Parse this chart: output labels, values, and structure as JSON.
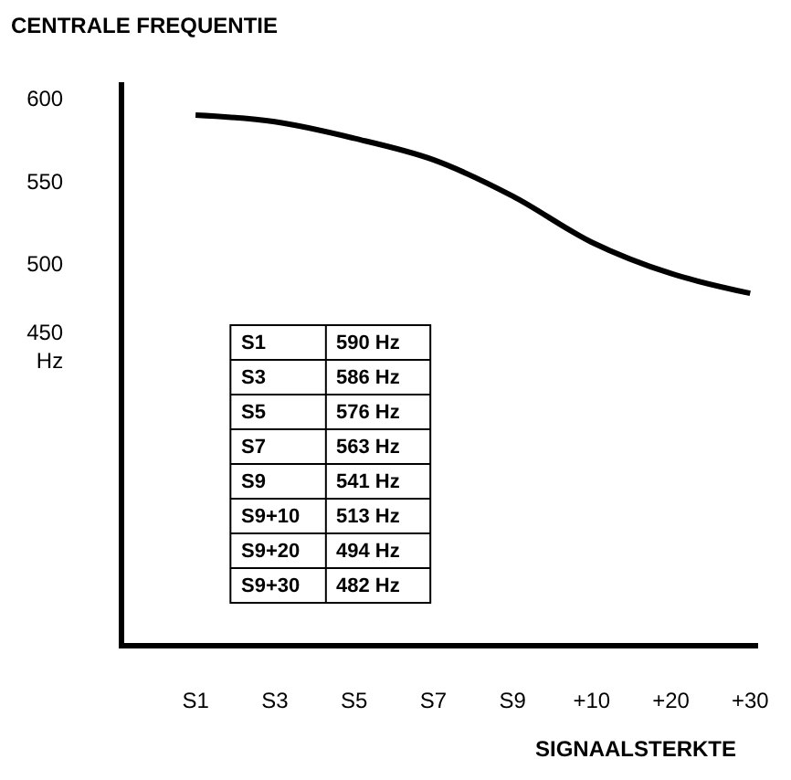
{
  "chart_data": {
    "type": "line",
    "title": "CENTRALE FREQUENTIE",
    "xlabel": "SIGNAALSTERKTE",
    "categories": [
      "S1",
      "S3",
      "S5",
      "S7",
      "S9",
      "+10",
      "+20",
      "+30"
    ],
    "series": [
      {
        "color": "#000000",
        "values": [
          590,
          586,
          576,
          563,
          541,
          513,
          494,
          482
        ]
      }
    ],
    "annotations": [
      "S1",
      "590 Hz",
      "S3",
      "586 Hz",
      "S5",
      "576 Hz",
      "S7",
      "563 Hz",
      "S9",
      "541 Hz",
      "S9+10",
      "513 Hz",
      "S9+20",
      "494 Hz",
      "S9+30",
      "482 Hz"
    ],
    "ylim": [
      270,
      610
    ],
    "yticks": [
      {
        "value": 450,
        "label": "450\nHz"
      },
      500,
      550,
      600
    ],
    "marker": "none",
    "line_style": "solid"
  }
}
